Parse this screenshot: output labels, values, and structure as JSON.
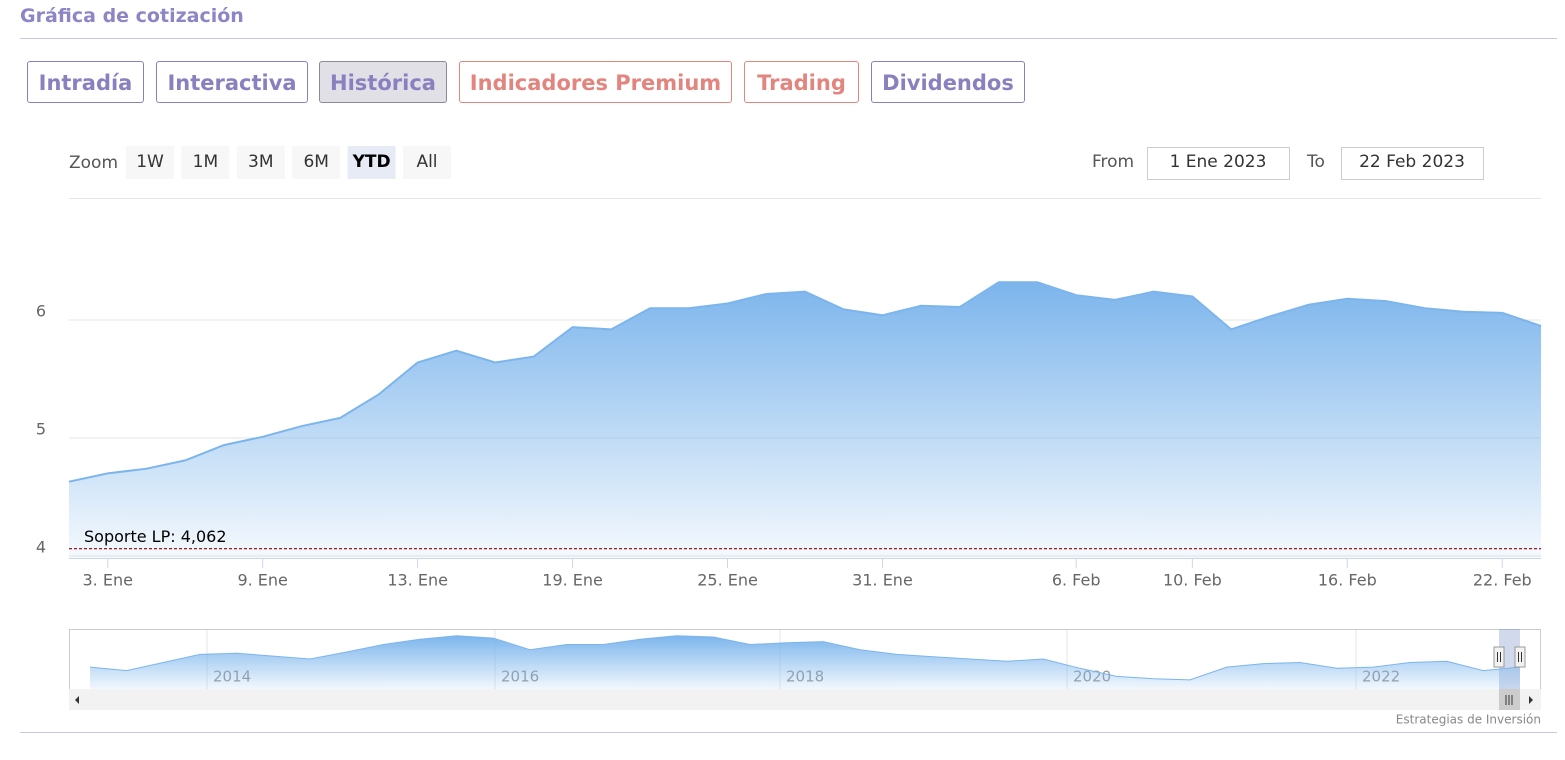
{
  "header": {
    "title": "Gráfica de cotización"
  },
  "tabs": [
    "Intradía",
    "Interactiva",
    "Histórica",
    "Indicadores Premium",
    "Trading",
    "Dividendos"
  ],
  "active_tab": 2,
  "range_selector": {
    "zoom_label": "Zoom",
    "buttons": [
      "1W",
      "1M",
      "3M",
      "6M",
      "YTD",
      "All"
    ],
    "active_button": 4,
    "from_label": "From",
    "from": "1 Ene 2023",
    "to_label": "To",
    "to": "22 Feb 2023"
  },
  "chart_data": {
    "type": "area",
    "categories": [
      null,
      "3. Ene",
      null,
      null,
      null,
      "9. Ene",
      null,
      null,
      null,
      "13. Ene",
      null,
      null,
      null,
      "19. Ene",
      null,
      null,
      null,
      "25. Ene",
      null,
      null,
      null,
      "31. Ene",
      null,
      null,
      null,
      null,
      "6. Feb",
      null,
      null,
      "10. Feb",
      null,
      null,
      null,
      "16. Feb",
      null,
      null,
      null,
      "22. Feb",
      null
    ],
    "values": [
      4.63,
      4.7,
      4.74,
      4.81,
      4.94,
      5.01,
      5.1,
      5.17,
      5.37,
      5.64,
      5.74,
      5.64,
      5.69,
      5.94,
      5.92,
      6.1,
      6.1,
      6.14,
      6.22,
      6.24,
      6.09,
      6.04,
      6.12,
      6.11,
      6.32,
      6.32,
      6.21,
      6.17,
      6.24,
      6.2,
      5.92,
      6.03,
      6.13,
      6.18,
      6.16,
      6.1,
      6.07,
      6.06,
      5.95
    ],
    "color": "#7cb5ec",
    "ylim": [
      4,
      7
    ],
    "yticks": [
      4,
      5,
      6
    ],
    "grid": true,
    "plot_line": {
      "label": "Soporte LP: 4,062",
      "value": 4.062,
      "color": "#8b0000"
    },
    "navigator": {
      "labels": [
        "2014",
        "2016",
        "2018",
        "2020",
        "2022"
      ],
      "ylim": [
        3,
        8
      ],
      "values": [
        4.8,
        4.5,
        5.2,
        5.9,
        6.0,
        5.75,
        5.5,
        6.1,
        6.75,
        7.2,
        7.5,
        7.3,
        6.3,
        6.75,
        6.75,
        7.2,
        7.5,
        7.4,
        6.75,
        6.9,
        7.0,
        6.3,
        5.9,
        5.7,
        5.5,
        5.3,
        5.5,
        4.7,
        4.0,
        3.8,
        3.7,
        4.8,
        5.1,
        5.2,
        4.7,
        4.8,
        5.2,
        5.3,
        4.5,
        4.8
      ]
    }
  },
  "credits": "Estrategias de Inversión"
}
